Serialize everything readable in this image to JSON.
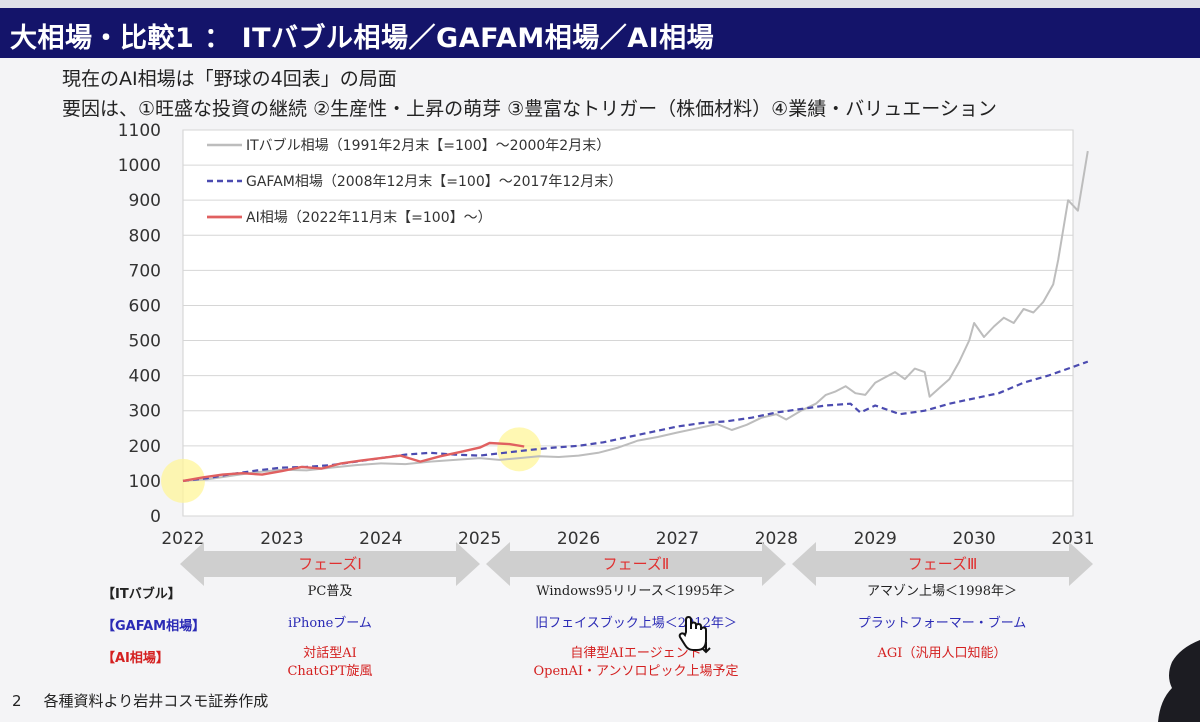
{
  "title": "大相場・比較1 ： ITバブル相場／GAFAM相場／AI相場",
  "subtitle1": "現在のAI相場は「野球の4回表」の局面",
  "subtitle2": "要因は、①旺盛な投資の継続 ②生産性・上昇の萌芽 ③豊富なトリガー（株価材料）④業績・バリュエーション",
  "footer": {
    "page": "2",
    "text": "各種資料より岩井コスモ証券作成"
  },
  "colors": {
    "it": "#bdbdbd",
    "gafam": "#4b4bb0",
    "ai": "#e06060",
    "title_bg": "#14146a",
    "phase_arrow": "#cfcfcf",
    "highlight": "#fff59a"
  },
  "chart_data": {
    "type": "line",
    "x_axis": {
      "ticks": [
        "2022",
        "2023",
        "2024",
        "2025",
        "2026",
        "2027",
        "2028",
        "2029",
        "2030",
        "2031"
      ],
      "range": [
        2022,
        2031
      ]
    },
    "y_axis": {
      "ticks": [
        "0",
        "100",
        "200",
        "300",
        "400",
        "500",
        "600",
        "700",
        "800",
        "900",
        "1000",
        "1100"
      ],
      "range": [
        0,
        1100
      ]
    },
    "grid": "horizontal",
    "legend_position": "top-left",
    "series": [
      {
        "name": "ITバブル相場（1991年2月末【=100】～2000年2月末）",
        "style": "solid",
        "points": [
          [
            2022.0,
            100
          ],
          [
            2022.25,
            105
          ],
          [
            2022.5,
            115
          ],
          [
            2022.75,
            125
          ],
          [
            2023.0,
            132
          ],
          [
            2023.25,
            130
          ],
          [
            2023.5,
            138
          ],
          [
            2023.75,
            145
          ],
          [
            2024.0,
            150
          ],
          [
            2024.25,
            148
          ],
          [
            2024.5,
            155
          ],
          [
            2024.75,
            160
          ],
          [
            2025.0,
            165
          ],
          [
            2025.2,
            160
          ],
          [
            2025.4,
            165
          ],
          [
            2025.6,
            170
          ],
          [
            2025.8,
            168
          ],
          [
            2026.0,
            172
          ],
          [
            2026.2,
            180
          ],
          [
            2026.4,
            195
          ],
          [
            2026.6,
            215
          ],
          [
            2026.8,
            225
          ],
          [
            2027.0,
            238
          ],
          [
            2027.2,
            250
          ],
          [
            2027.4,
            262
          ],
          [
            2027.55,
            245
          ],
          [
            2027.7,
            260
          ],
          [
            2027.85,
            280
          ],
          [
            2028.0,
            290
          ],
          [
            2028.1,
            275
          ],
          [
            2028.25,
            300
          ],
          [
            2028.4,
            320
          ],
          [
            2028.5,
            345
          ],
          [
            2028.6,
            355
          ],
          [
            2028.7,
            370
          ],
          [
            2028.8,
            350
          ],
          [
            2028.9,
            345
          ],
          [
            2029.0,
            380
          ],
          [
            2029.1,
            395
          ],
          [
            2029.2,
            410
          ],
          [
            2029.3,
            390
          ],
          [
            2029.4,
            420
          ],
          [
            2029.5,
            410
          ],
          [
            2029.55,
            340
          ],
          [
            2029.65,
            365
          ],
          [
            2029.75,
            390
          ],
          [
            2029.85,
            440
          ],
          [
            2029.95,
            500
          ],
          [
            2030.0,
            550
          ],
          [
            2030.1,
            510
          ],
          [
            2030.2,
            540
          ],
          [
            2030.3,
            565
          ],
          [
            2030.4,
            550
          ],
          [
            2030.5,
            590
          ],
          [
            2030.6,
            580
          ],
          [
            2030.7,
            610
          ],
          [
            2030.8,
            660
          ],
          [
            2030.85,
            730
          ],
          [
            2030.95,
            900
          ],
          [
            2031.05,
            870
          ],
          [
            2031.15,
            1040
          ]
        ]
      },
      {
        "name": "GAFAM相場（2008年12月末【=100】～2017年12月末）",
        "style": "dashed",
        "points": [
          [
            2022.0,
            100
          ],
          [
            2022.25,
            108
          ],
          [
            2022.5,
            120
          ],
          [
            2022.75,
            130
          ],
          [
            2023.0,
            138
          ],
          [
            2023.25,
            140
          ],
          [
            2023.5,
            145
          ],
          [
            2023.75,
            155
          ],
          [
            2024.0,
            165
          ],
          [
            2024.25,
            175
          ],
          [
            2024.5,
            180
          ],
          [
            2024.75,
            175
          ],
          [
            2025.0,
            172
          ],
          [
            2025.25,
            180
          ],
          [
            2025.5,
            188
          ],
          [
            2025.75,
            195
          ],
          [
            2026.0,
            200
          ],
          [
            2026.25,
            210
          ],
          [
            2026.5,
            225
          ],
          [
            2026.75,
            240
          ],
          [
            2027.0,
            255
          ],
          [
            2027.25,
            265
          ],
          [
            2027.5,
            270
          ],
          [
            2027.75,
            280
          ],
          [
            2028.0,
            295
          ],
          [
            2028.25,
            305
          ],
          [
            2028.5,
            315
          ],
          [
            2028.75,
            320
          ],
          [
            2028.85,
            295
          ],
          [
            2029.0,
            315
          ],
          [
            2029.15,
            300
          ],
          [
            2029.25,
            290
          ],
          [
            2029.5,
            300
          ],
          [
            2029.75,
            320
          ],
          [
            2030.0,
            335
          ],
          [
            2030.25,
            350
          ],
          [
            2030.5,
            380
          ],
          [
            2030.75,
            400
          ],
          [
            2031.0,
            425
          ],
          [
            2031.15,
            440
          ]
        ]
      },
      {
        "name": "AI相場（2022年11月末【=100】～）",
        "style": "solid",
        "points": [
          [
            2022.0,
            100
          ],
          [
            2022.2,
            110
          ],
          [
            2022.4,
            118
          ],
          [
            2022.6,
            122
          ],
          [
            2022.8,
            118
          ],
          [
            2023.0,
            128
          ],
          [
            2023.2,
            140
          ],
          [
            2023.4,
            135
          ],
          [
            2023.6,
            150
          ],
          [
            2023.8,
            158
          ],
          [
            2024.0,
            165
          ],
          [
            2024.2,
            172
          ],
          [
            2024.4,
            155
          ],
          [
            2024.6,
            170
          ],
          [
            2024.8,
            182
          ],
          [
            2025.0,
            195
          ],
          [
            2025.1,
            208
          ],
          [
            2025.3,
            205
          ],
          [
            2025.45,
            198
          ]
        ]
      }
    ],
    "highlights": [
      [
        2022.0,
        100
      ],
      [
        2025.4,
        190
      ]
    ],
    "phases": [
      {
        "label": "フェーズⅠ",
        "from": 2022,
        "to": 2025
      },
      {
        "label": "フェーズⅡ",
        "from": 2025,
        "to": 2028
      },
      {
        "label": "フェーズⅢ",
        "from": 2028,
        "to": 2031
      }
    ]
  },
  "table": {
    "row_labels": [
      "【ITバブル】",
      "【GAFAM相場】",
      "【AI相場】"
    ],
    "it": [
      "PC普及",
      "Windows95リリース＜1995年＞",
      "アマゾン上場＜1998年＞"
    ],
    "gafam": [
      "iPhoneブーム",
      "旧フェイスブック上場＜2012年＞",
      "プラットフォーマー・ブーム"
    ],
    "ai": [
      {
        "line1": "対話型AI",
        "line2": "ChatGPT旋風"
      },
      {
        "line1": "自律型AIエージェント",
        "line2": "OpenAI・アンソロピック上場予定"
      },
      {
        "line1": "AGI（汎用人口知能）",
        "line2": ""
      }
    ]
  }
}
